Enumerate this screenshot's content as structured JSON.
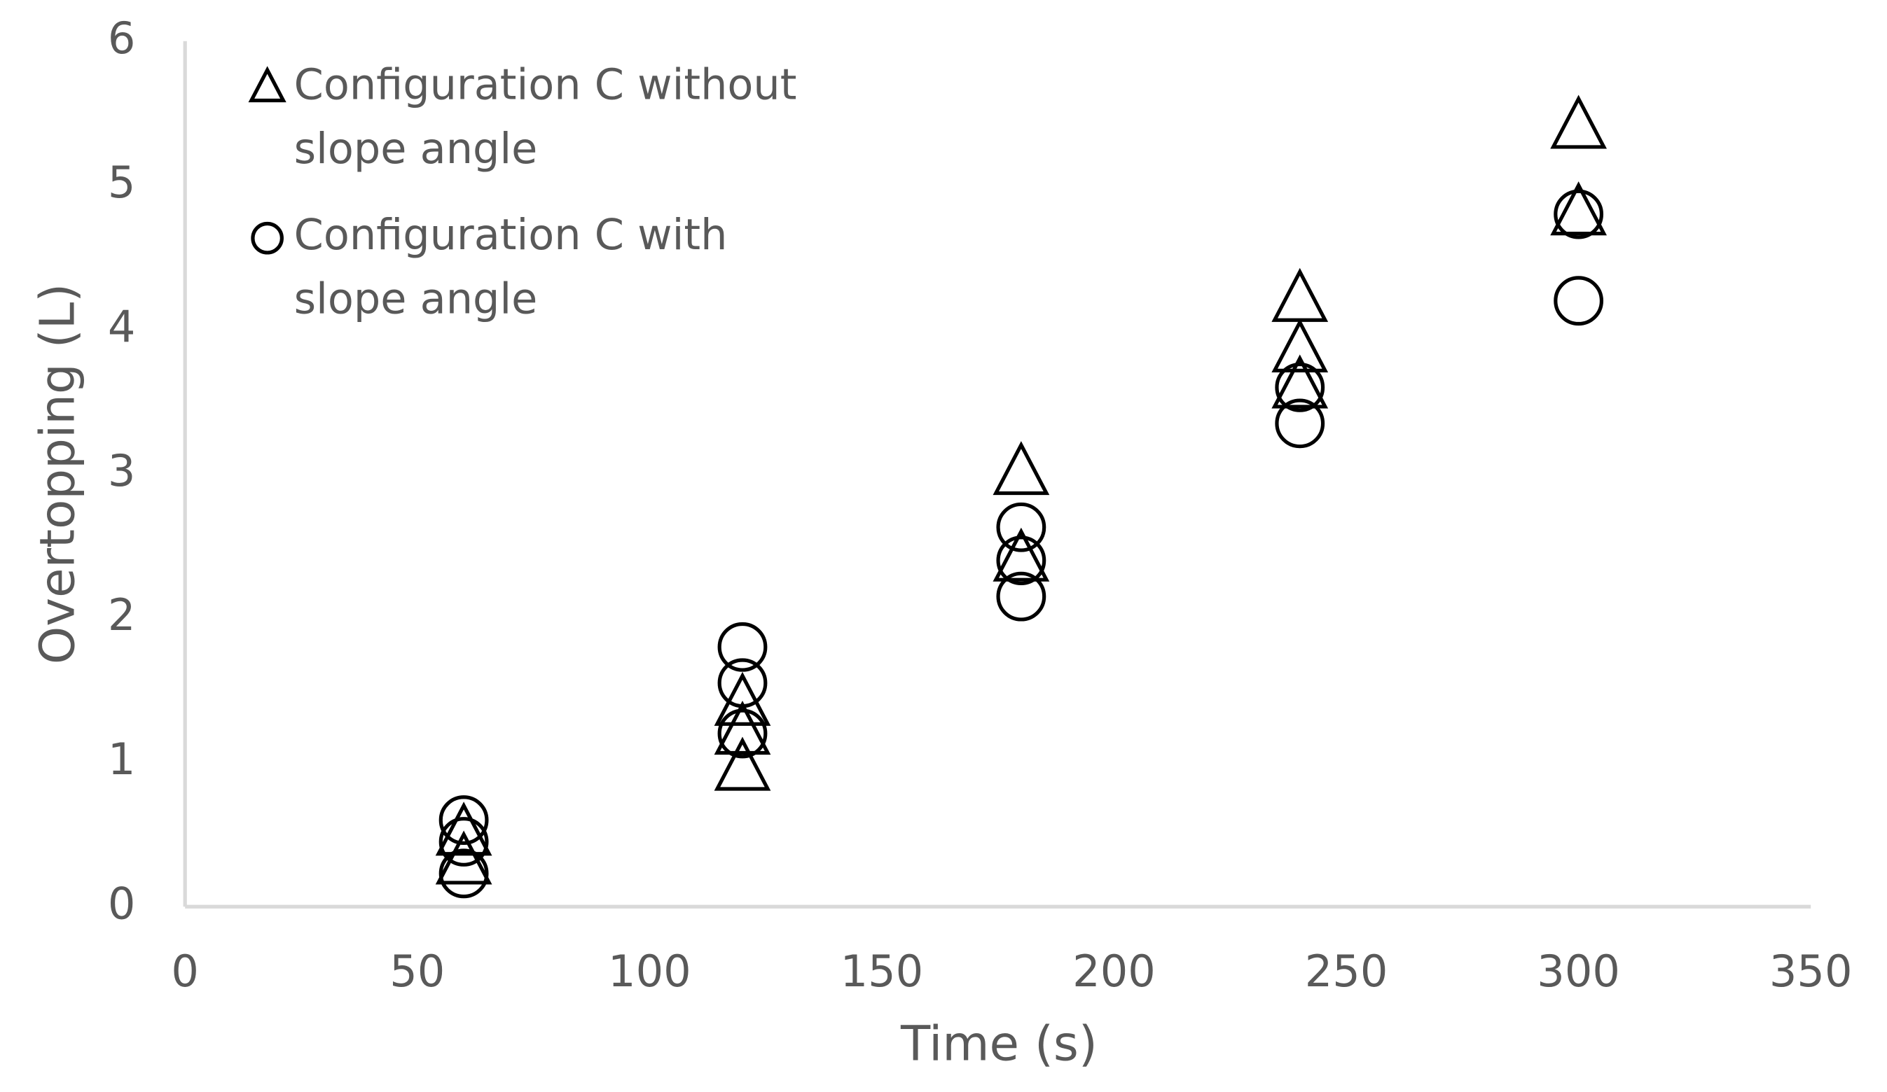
{
  "chart_data": {
    "type": "scatter",
    "x_label": "Time (s)",
    "y_label": "Overtopping (L)",
    "xlim": [
      0,
      350
    ],
    "xticks": [
      0,
      50,
      100,
      150,
      200,
      250,
      300,
      350
    ],
    "ylim": [
      0,
      6
    ],
    "yticks": [
      0,
      1,
      2,
      3,
      4,
      5,
      6
    ],
    "legend": "upper-left",
    "series": [
      {
        "name": "Configuration C without slope angle",
        "marker": "triangle",
        "color": "#000000",
        "x": [
          60,
          60,
          120,
          120,
          120,
          180,
          180,
          240,
          240,
          240,
          300,
          300
        ],
        "values": [
          0.5,
          0.3,
          1.4,
          1.2,
          0.95,
          3.0,
          2.4,
          4.2,
          3.85,
          3.6,
          5.4,
          4.8
        ]
      },
      {
        "name": "Configuration C with slope angle",
        "marker": "circle",
        "color": "#000000",
        "x": [
          60,
          60,
          60,
          120,
          120,
          120,
          180,
          180,
          180,
          240,
          240,
          300,
          300
        ],
        "values": [
          0.6,
          0.45,
          0.23,
          1.8,
          1.55,
          1.2,
          2.63,
          2.4,
          2.15,
          3.6,
          3.35,
          4.8,
          4.2
        ]
      }
    ]
  }
}
